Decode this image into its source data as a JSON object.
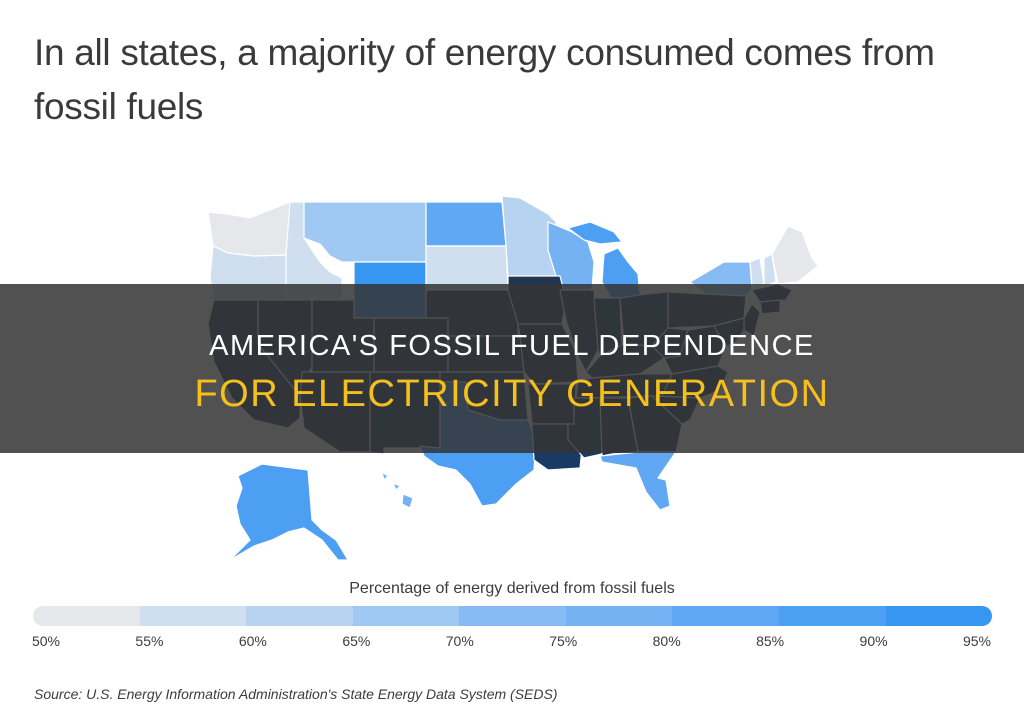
{
  "title": "In all states, a majority of energy consumed comes from fossil fuels",
  "overlay": {
    "line1": "AMERICA'S FOSSIL FUEL DEPENDENCE",
    "line2": "FOR ELECTRICITY GENERATION"
  },
  "legend": {
    "title": "Percentage of energy derived from fossil fuels",
    "ticks": [
      "50%",
      "55%",
      "60%",
      "65%",
      "70%",
      "75%",
      "80%",
      "85%",
      "90%",
      "95%"
    ],
    "colors": [
      "#e5e7ea",
      "#cfdff0",
      "#b6d3f1",
      "#9fc8f2",
      "#86bcf3",
      "#74b2f3",
      "#60a8f3",
      "#4c9ff3",
      "#3896f3"
    ]
  },
  "colors": {
    "dark": "#1f3550",
    "darker": "#1a3a66",
    "border": "#ffffff"
  },
  "source": "Source:  U.S. Energy Information Administration's State Energy Data System (SEDS)"
}
